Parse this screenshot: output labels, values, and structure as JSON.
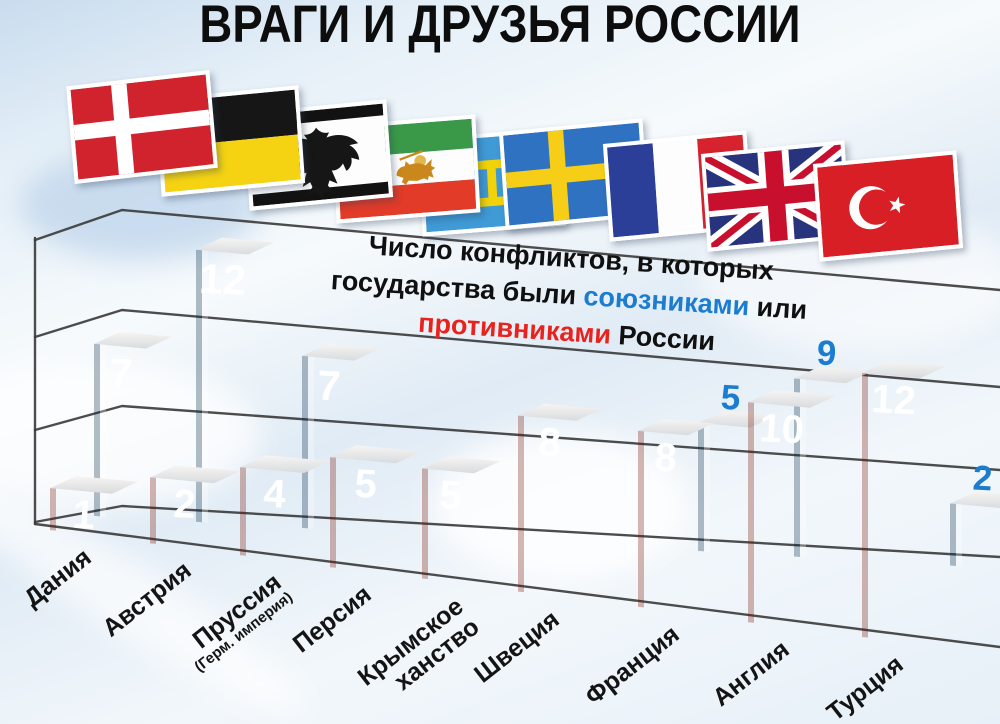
{
  "title": "ВРАГИ И ДРУЗЬЯ РОССИИ",
  "subtitle": {
    "line1": "Число конфликтов, в которых",
    "line2_pre": "государства были ",
    "line2_ally": "союзниками",
    "line2_post": " или",
    "line3_enemy": "противниками",
    "line3_post": " России"
  },
  "colors": {
    "ally_text": "#1b7cd0",
    "enemy_text": "#e8231e",
    "ally_bar_top": "#49b8e0",
    "ally_bar_bottom": "#0f7dad",
    "enemy_bar_top": "#fd8f3f",
    "enemy_bar_bottom": "#e73a1e",
    "grid": "#3d3d3d"
  },
  "chart_data": {
    "type": "bar",
    "title": "Число конфликтов, в которых государства были союзниками или противниками России",
    "categories": [
      "Дания",
      "Австрия",
      "Пруссия (Герм. империя)",
      "Персия",
      "Крымское ханство",
      "Швеция",
      "Франция",
      "Англия",
      "Турция"
    ],
    "series": [
      {
        "name": "союзниками России",
        "color": "#1e9dcd",
        "values": [
          7,
          12,
          7,
          0,
          0,
          0,
          5,
          9,
          2
        ]
      },
      {
        "name": "противниками России",
        "color": "#f2552a",
        "values": [
          1,
          2,
          4,
          5,
          5,
          8,
          8,
          10,
          12
        ]
      }
    ],
    "ylim": [
      0,
      12
    ],
    "gridline_levels": [
      0,
      4,
      8,
      12
    ],
    "grid": "on",
    "legend_position": "none (series colors referenced by colored words in subtitle)",
    "value_labels": "shown on bars; partially hidden ally bars labeled in blue above bar (5, 9, 2)"
  },
  "axis_labels": [
    {
      "label": "Дания",
      "sub": ""
    },
    {
      "label": "Австрия",
      "sub": ""
    },
    {
      "label": "Пруссия",
      "sub": "(Герм. империя)"
    },
    {
      "label": "Персия",
      "sub": ""
    },
    {
      "label": "Крымское\nханство",
      "sub": ""
    },
    {
      "label": "Швеция",
      "sub": ""
    },
    {
      "label": "Франция",
      "sub": ""
    },
    {
      "label": "Англия",
      "sub": ""
    },
    {
      "label": "Турция",
      "sub": ""
    }
  ],
  "flags": [
    {
      "key": "denmark",
      "country": "Дания"
    },
    {
      "key": "austria",
      "country": "Австрия"
    },
    {
      "key": "prussia",
      "country": "Пруссия"
    },
    {
      "key": "persia",
      "country": "Персия"
    },
    {
      "key": "crimea",
      "country": "Крымское ханство"
    },
    {
      "key": "sweden",
      "country": "Швеция"
    },
    {
      "key": "france",
      "country": "Франция"
    },
    {
      "key": "england",
      "country": "Англия"
    },
    {
      "key": "turkey",
      "country": "Турция"
    }
  ]
}
